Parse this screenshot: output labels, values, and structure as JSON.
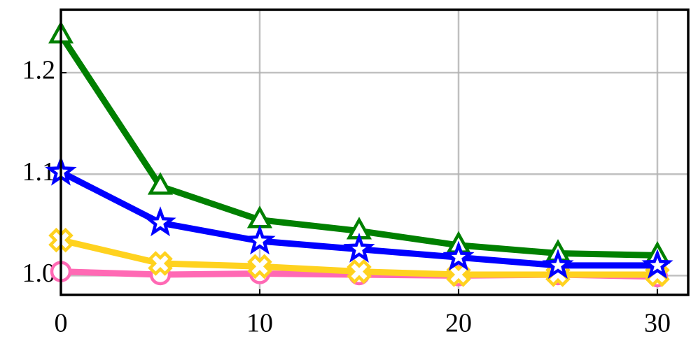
{
  "chart_data": {
    "type": "line",
    "x": [
      0,
      5,
      10,
      15,
      20,
      25,
      30
    ],
    "series": [
      {
        "color": "#ff69b4",
        "marker": "circle",
        "values": [
          1.004,
          1.001,
          1.002,
          1.001,
          1.0,
          1.001,
          0.999
        ]
      },
      {
        "color": "#ffd21f",
        "marker": "x",
        "values": [
          1.035,
          1.012,
          1.009,
          1.004,
          1.001,
          1.001,
          1.001
        ]
      },
      {
        "color": "#008000",
        "marker": "triangle",
        "values": [
          1.237,
          1.088,
          1.055,
          1.044,
          1.03,
          1.022,
          1.02
        ]
      },
      {
        "color": "#0000ff",
        "marker": "star",
        "values": [
          1.102,
          1.052,
          1.034,
          1.026,
          1.018,
          1.01,
          1.01
        ]
      }
    ],
    "xlim": [
      0,
      31.55
    ],
    "ylim": [
      0.981,
      1.262
    ],
    "xticks": [
      0,
      10,
      20,
      30
    ],
    "yticks": [
      {
        "value": 1.0,
        "label": "1.0"
      },
      1.1,
      1.2
    ],
    "grid": true
  }
}
